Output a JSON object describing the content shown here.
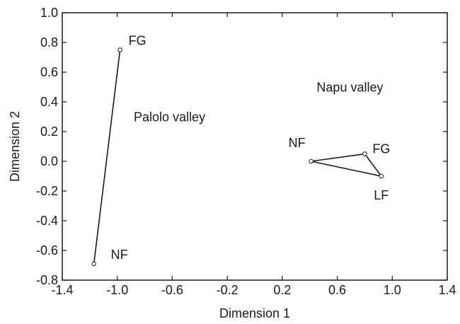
{
  "chart_data": {
    "type": "scatter",
    "title": "",
    "xlabel": "Dimension 1",
    "ylabel": "Dimension 2",
    "xlim": [
      -1.4,
      1.4
    ],
    "ylim": [
      -0.8,
      1.0
    ],
    "xticks": [
      -1.4,
      -1.0,
      -0.6,
      -0.2,
      0.2,
      0.6,
      1.0,
      1.4
    ],
    "xtick_labels": [
      "-1.4",
      "-1.0",
      "-0.6",
      "-0.2",
      "0.2",
      "0.6",
      "1.0",
      "1.4"
    ],
    "yticks": [
      1.0,
      0.8,
      0.6,
      0.4,
      0.2,
      0.0,
      -0.2,
      -0.4,
      -0.6,
      -0.8
    ],
    "ytick_labels": [
      "1.0",
      "0.8",
      "0.6",
      "0.4",
      "0.2",
      "0.0",
      "-0.2",
      "-0.4",
      "-0.6",
      "-0.8"
    ],
    "grid": false,
    "legend": "none",
    "series": [
      {
        "name": "Palolo valley",
        "connect": "line",
        "points": [
          {
            "label": "FG",
            "x": -0.98,
            "y": 0.75
          },
          {
            "label": "NF",
            "x": -1.17,
            "y": -0.69
          }
        ]
      },
      {
        "name": "Napu valley",
        "connect": "triangle",
        "points": [
          {
            "label": "NF",
            "x": 0.41,
            "y": 0.0
          },
          {
            "label": "FG",
            "x": 0.8,
            "y": 0.05
          },
          {
            "label": "LF",
            "x": 0.92,
            "y": -0.1
          }
        ]
      }
    ],
    "annotations": [
      {
        "text": "Palolo valley",
        "x": -0.88,
        "y": 0.27
      },
      {
        "text": "Napu valley",
        "x": 0.45,
        "y": 0.47
      }
    ]
  }
}
